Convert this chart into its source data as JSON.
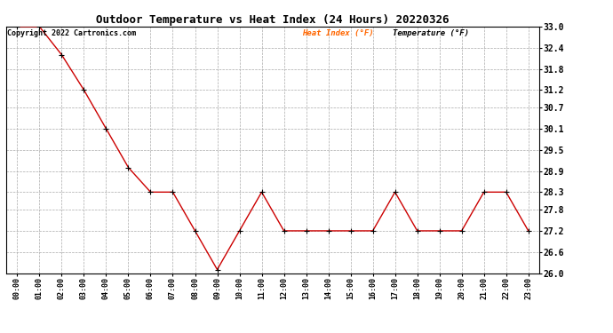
{
  "title": "Outdoor Temperature vs Heat Index (24 Hours) 20220326",
  "copyright_text": "Copyright 2022 Cartronics.com",
  "legend_heat": "Heat Index (°F)",
  "legend_temp": "Temperature (°F)",
  "x_labels": [
    "00:00",
    "01:00",
    "02:00",
    "03:00",
    "04:00",
    "05:00",
    "06:00",
    "07:00",
    "08:00",
    "09:00",
    "10:00",
    "11:00",
    "12:00",
    "13:00",
    "14:00",
    "15:00",
    "16:00",
    "17:00",
    "18:00",
    "19:00",
    "20:00",
    "21:00",
    "22:00",
    "23:00"
  ],
  "heat_index": [
    33.0,
    33.0,
    32.2,
    31.2,
    30.1,
    29.0,
    28.3,
    28.3,
    27.2,
    26.1,
    27.2,
    28.3,
    27.2,
    27.2,
    27.2,
    27.2,
    27.2,
    28.3,
    27.2,
    27.2,
    27.2,
    28.3,
    28.3,
    27.2
  ],
  "ylim_min": 26.0,
  "ylim_max": 33.0,
  "y_ticks": [
    26.0,
    26.6,
    27.2,
    27.8,
    28.3,
    28.9,
    29.5,
    30.1,
    30.7,
    31.2,
    31.8,
    32.4,
    33.0
  ],
  "line_color": "#cc0000",
  "marker_color": "#000000",
  "title_fontsize": 9,
  "ytick_fontsize": 7,
  "xtick_fontsize": 6,
  "copyright_fontsize": 6,
  "legend_fontsize": 6.5,
  "axis_color": "#000000",
  "legend_heat_color": "#ff6600",
  "legend_temp_color": "#000000",
  "background_color": "#ffffff",
  "grid_color": "#aaaaaa"
}
